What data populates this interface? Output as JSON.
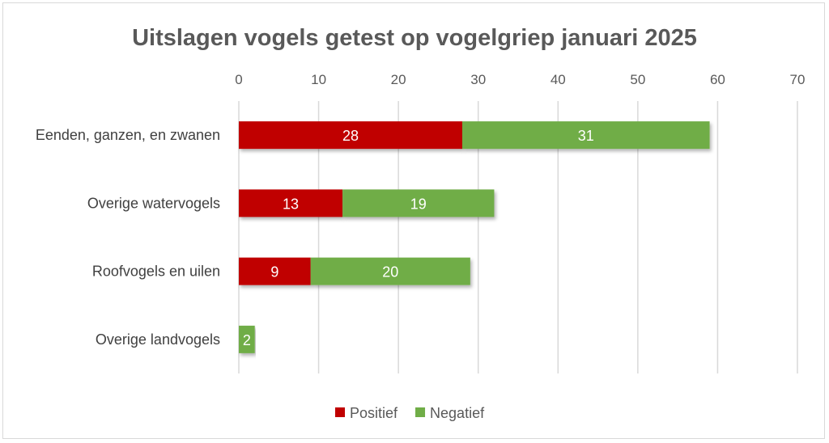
{
  "chart_data": {
    "type": "bar",
    "orientation": "horizontal",
    "stacked": true,
    "title": "Uitslagen vogels getest op vogelgriep januari 2025",
    "categories": [
      "Eenden, ganzen, en zwanen",
      "Overige watervogels",
      "Roofvogels en uilen",
      "Overige landvogels"
    ],
    "series": [
      {
        "name": "Positief",
        "color": "#C00000",
        "values": [
          28,
          13,
          9,
          0
        ]
      },
      {
        "name": "Negatief",
        "color": "#70AD47",
        "values": [
          31,
          19,
          20,
          2
        ]
      }
    ],
    "xlim": [
      0,
      70
    ],
    "xticks": [
      0,
      10,
      20,
      30,
      40,
      50,
      60,
      70
    ],
    "xaxis_position": "top",
    "grid": true,
    "legend_position": "bottom",
    "xlabel": "",
    "ylabel": ""
  }
}
